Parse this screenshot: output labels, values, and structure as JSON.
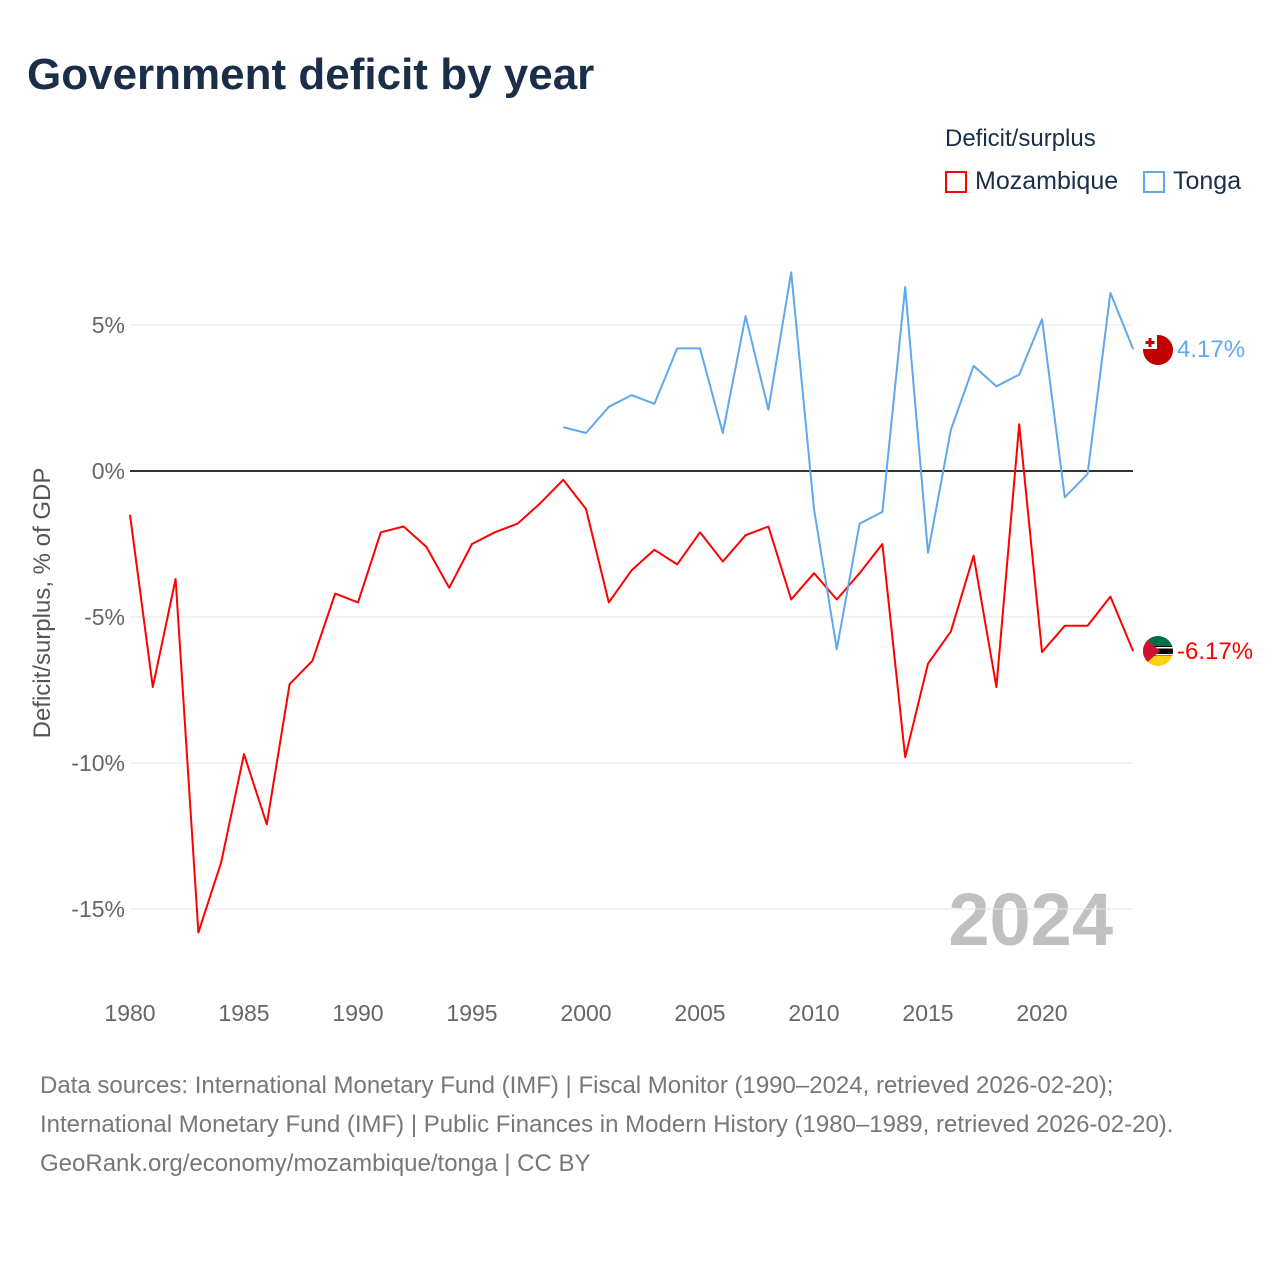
{
  "title": "Government deficit by year",
  "legend": {
    "title": "Deficit/surplus",
    "items": [
      {
        "name": "Mozambique",
        "color": "#ff0000"
      },
      {
        "name": "Tonga",
        "color": "#5fa8ea"
      }
    ]
  },
  "year_watermark": "2024",
  "end_labels": {
    "mozambique": "-6.17%",
    "tonga": "4.17%"
  },
  "footer": {
    "sources": "Data sources: International Monetary Fund (IMF) | Fiscal Monitor (1990–2024, retrieved 2026-02-20); International Monetary Fund (IMF) | Public Finances in Modern History (1980–1989, retrieved 2026-02-20).",
    "credit": "GeoRank.org/economy/mozambique/tonga | CC BY"
  },
  "chart_data": {
    "type": "line",
    "title": "Government deficit by year",
    "xlabel": "",
    "ylabel": "Deficit/surplus, % of GDP",
    "xlim": [
      1980,
      2024
    ],
    "ylim": [
      -17,
      7.5
    ],
    "x_ticks": [
      1980,
      1985,
      1990,
      1995,
      2000,
      2005,
      2010,
      2015,
      2020
    ],
    "x_tick_labels": [
      "1980",
      "1985",
      "1990",
      "1995",
      "2000",
      "2005",
      "2010",
      "2015",
      "2020"
    ],
    "y_ticks": [
      5,
      0,
      -5,
      -10,
      -15
    ],
    "y_tick_labels": [
      "5%",
      "0%",
      "-5%",
      "-10%",
      "-15%"
    ],
    "grid": true,
    "legend_position": "top-right",
    "series": [
      {
        "name": "Mozambique",
        "color": "#ff0000",
        "start_year": 1980,
        "values": [
          -1.5,
          -7.4,
          -3.7,
          -15.8,
          -13.4,
          -9.7,
          -12.1,
          -7.3,
          -6.5,
          -4.2,
          -4.5,
          -2.1,
          -1.9,
          -2.6,
          -4.0,
          -2.5,
          -2.1,
          -1.8,
          -1.1,
          -0.3,
          -1.3,
          -4.5,
          -3.4,
          -2.7,
          -3.2,
          -2.1,
          -3.1,
          -2.2,
          -1.9,
          -4.4,
          -3.5,
          -4.4,
          -3.5,
          -2.5,
          -9.8,
          -6.6,
          -5.5,
          -2.9,
          -7.4,
          1.6,
          -6.2,
          -5.3,
          -5.3,
          -4.3,
          -6.17
        ]
      },
      {
        "name": "Tonga",
        "color": "#5fa8ea",
        "start_year": 1999,
        "values": [
          1.5,
          1.3,
          2.2,
          2.6,
          2.3,
          4.2,
          4.2,
          1.3,
          5.3,
          2.1,
          6.8,
          -1.3,
          -6.1,
          -1.8,
          -1.4,
          6.3,
          -2.8,
          1.4,
          3.6,
          2.9,
          3.3,
          5.2,
          -0.9,
          -0.1,
          6.1,
          4.17
        ]
      }
    ]
  }
}
